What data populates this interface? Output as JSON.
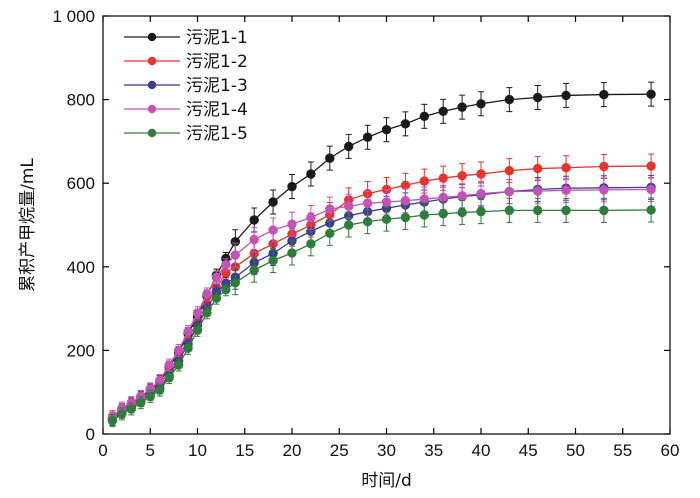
{
  "chart_data": {
    "type": "line",
    "title": "",
    "xlabel": "时间/d",
    "ylabel": "累积产甲烷量/mL",
    "xlim": [
      0,
      60
    ],
    "ylim": [
      0,
      1000
    ],
    "xticks": [
      "0",
      "5",
      "10",
      "15",
      "20",
      "25",
      "30",
      "35",
      "40",
      "45",
      "50",
      "55",
      "60"
    ],
    "yticks": [
      "0",
      "200",
      "400",
      "600",
      "800",
      "1 000"
    ],
    "grid": false,
    "legend_position": "top-left",
    "x": [
      1,
      2,
      3,
      4,
      5,
      6,
      7,
      8,
      9,
      10,
      11,
      12,
      13,
      14,
      16,
      18,
      20,
      22,
      24,
      26,
      28,
      30,
      32,
      34,
      36,
      38,
      40,
      43,
      46,
      49,
      53,
      58
    ],
    "series": [
      {
        "name": "污泥1-1",
        "color": "#1a1a1a",
        "values": [
          38,
          58,
          72,
          88,
          105,
          125,
          160,
          195,
          240,
          280,
          330,
          380,
          420,
          460,
          512,
          555,
          592,
          622,
          660,
          688,
          710,
          728,
          742,
          760,
          772,
          782,
          790,
          800,
          805,
          810,
          812,
          813
        ]
      },
      {
        "name": "污泥1-2",
        "color": "#e8332d",
        "values": [
          38,
          55,
          70,
          85,
          100,
          118,
          150,
          185,
          225,
          270,
          310,
          350,
          385,
          400,
          432,
          455,
          478,
          500,
          525,
          560,
          575,
          585,
          595,
          605,
          612,
          618,
          622,
          630,
          635,
          637,
          640,
          641
        ]
      },
      {
        "name": "污泥1-3",
        "color": "#3b3b93",
        "values": [
          35,
          52,
          65,
          80,
          95,
          110,
          140,
          175,
          215,
          260,
          300,
          340,
          360,
          375,
          410,
          432,
          462,
          485,
          505,
          522,
          532,
          540,
          548,
          555,
          562,
          568,
          572,
          580,
          585,
          588,
          589,
          590
        ]
      },
      {
        "name": "污泥1-4",
        "color": "#c452b8",
        "values": [
          42,
          62,
          75,
          90,
          108,
          128,
          165,
          200,
          245,
          290,
          335,
          375,
          405,
          428,
          465,
          488,
          502,
          518,
          538,
          545,
          552,
          555,
          558,
          562,
          566,
          570,
          575,
          580,
          581,
          583,
          584,
          585
        ]
      },
      {
        "name": "污泥1-5",
        "color": "#2f7d3a",
        "values": [
          32,
          48,
          60,
          75,
          90,
          105,
          135,
          165,
          205,
          248,
          290,
          325,
          345,
          362,
          392,
          415,
          433,
          455,
          480,
          500,
          508,
          514,
          518,
          524,
          527,
          530,
          532,
          535,
          535,
          535,
          535,
          536
        ]
      }
    ]
  }
}
